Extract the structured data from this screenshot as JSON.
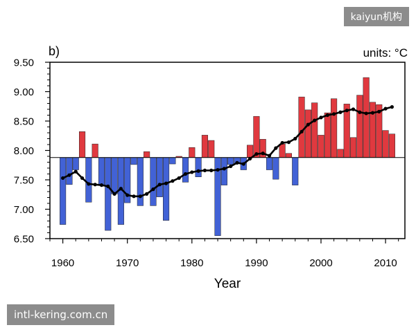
{
  "watermarks": {
    "top_right": "kaiyun机构",
    "bottom_left": "intl-kering.com.cn"
  },
  "chart_data": {
    "type": "bar",
    "panel_label": "b)",
    "units_label": "units: °C",
    "xlabel": "Year",
    "xlim": [
      1958,
      2013
    ],
    "ylim": [
      6.5,
      9.5
    ],
    "x_ticks": [
      1960,
      1970,
      1980,
      1990,
      2000,
      2010
    ],
    "x_tick_labels": [
      "1960",
      "1970",
      "1980",
      "1990",
      "2000",
      "2010"
    ],
    "y_ticks": [
      6.5,
      7.0,
      7.5,
      8.0,
      8.5,
      9.0,
      9.5
    ],
    "y_tick_labels": [
      "6.50",
      "7.00",
      "7.50",
      "8.00",
      "8.50",
      "9.00",
      "9.50"
    ],
    "grid": false,
    "baseline": 7.88,
    "x": [
      1960,
      1961,
      1962,
      1963,
      1964,
      1965,
      1966,
      1967,
      1968,
      1969,
      1970,
      1971,
      1972,
      1973,
      1974,
      1975,
      1976,
      1977,
      1978,
      1979,
      1980,
      1981,
      1982,
      1983,
      1984,
      1985,
      1986,
      1987,
      1988,
      1989,
      1990,
      1991,
      1992,
      1993,
      1994,
      1995,
      1996,
      1997,
      1998,
      1999,
      2000,
      2001,
      2002,
      2003,
      2004,
      2005,
      2006,
      2007,
      2008,
      2009,
      2010,
      2011
    ],
    "series": [
      {
        "type": "bar",
        "color_above": "#e0393f",
        "color_below": "#4262d6",
        "values": [
          6.74,
          7.42,
          7.67,
          8.32,
          7.12,
          8.11,
          7.41,
          6.64,
          7.26,
          6.74,
          7.11,
          7.76,
          7.06,
          7.98,
          7.06,
          7.21,
          6.81,
          7.77,
          7.9,
          7.46,
          8.05,
          7.55,
          8.26,
          8.17,
          6.55,
          7.41,
          7.76,
          7.78,
          7.67,
          8.09,
          8.58,
          8.19,
          7.67,
          7.51,
          8.11,
          7.95,
          7.41,
          8.91,
          8.69,
          8.81,
          8.26,
          8.64,
          8.88,
          8.02,
          8.79,
          8.22,
          8.94,
          9.24,
          8.82,
          8.78,
          8.34,
          8.28
        ]
      },
      {
        "type": "line",
        "color": "#000000",
        "markers": true,
        "values": [
          7.53,
          7.58,
          7.64,
          7.53,
          7.43,
          7.42,
          7.41,
          7.39,
          7.26,
          7.35,
          7.24,
          7.22,
          7.22,
          7.26,
          7.34,
          7.42,
          7.44,
          7.48,
          7.53,
          7.6,
          7.63,
          7.65,
          7.66,
          7.66,
          7.67,
          7.69,
          7.73,
          7.79,
          7.77,
          7.86,
          7.94,
          7.95,
          7.91,
          8.04,
          8.13,
          8.14,
          8.2,
          8.32,
          8.44,
          8.51,
          8.56,
          8.6,
          8.62,
          8.65,
          8.68,
          8.7,
          8.65,
          8.63,
          8.64,
          8.66,
          8.71,
          8.74
        ]
      }
    ]
  }
}
